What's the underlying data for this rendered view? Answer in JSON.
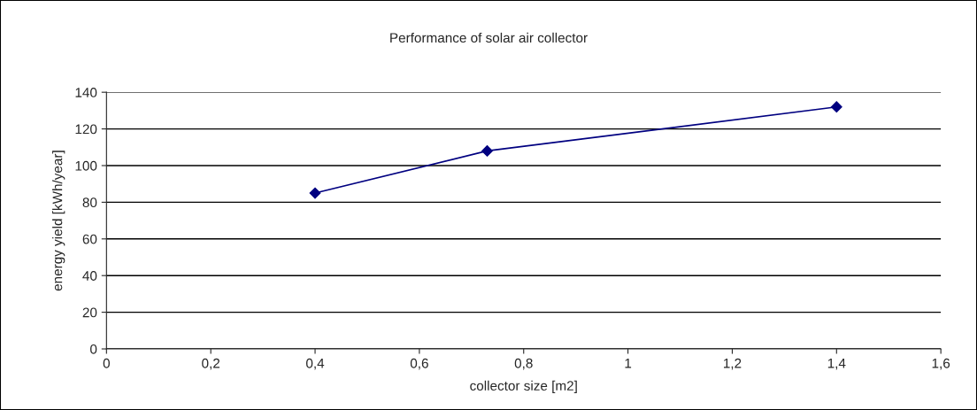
{
  "chart_data": {
    "type": "line",
    "title": "Performance of solar air collector",
    "xlabel": "collector size [m2]",
    "ylabel": "energy yield [kWh/year]",
    "x": [
      0.4,
      0.73,
      1.4
    ],
    "series": [
      {
        "color": "#000080",
        "values": [
          85,
          108,
          132
        ]
      }
    ],
    "marker": "diamond",
    "line_style": "solid",
    "grid": "y",
    "xlim": [
      0,
      1.6
    ],
    "xticks": [
      0,
      {
        "value": 0.2,
        "label": "0,2"
      },
      {
        "value": 0.4,
        "label": "0,4"
      },
      {
        "value": 0.6,
        "label": "0,6"
      },
      {
        "value": 0.8,
        "label": "0,8"
      },
      1,
      {
        "value": 1.2,
        "label": "1,2"
      },
      {
        "value": 1.4,
        "label": "1,4"
      },
      {
        "value": 1.6,
        "label": "1,6"
      }
    ],
    "ylim": [
      0,
      140
    ],
    "yticks": [
      0,
      20,
      40,
      60,
      80,
      100,
      120,
      140
    ]
  }
}
